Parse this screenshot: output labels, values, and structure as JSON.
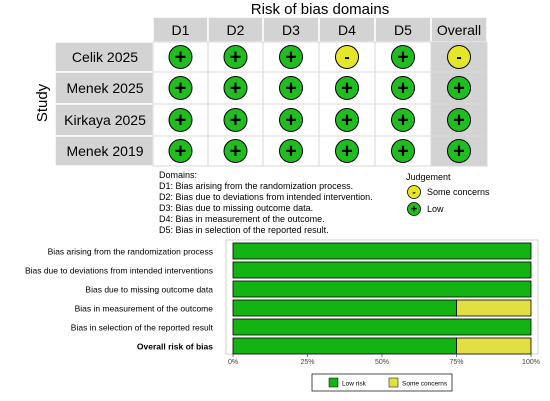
{
  "traffic_light": {
    "title": "Risk of bias domains",
    "study_axis_label": "Study",
    "domain_headers": [
      "D1",
      "D2",
      "D3",
      "D4",
      "D5",
      "Overall"
    ],
    "studies": [
      {
        "name": "Celik 2025",
        "judgements": [
          "low",
          "low",
          "low",
          "some",
          "low",
          "some"
        ]
      },
      {
        "name": "Menek 2025",
        "judgements": [
          "low",
          "low",
          "low",
          "low",
          "low",
          "low"
        ]
      },
      {
        "name": "Kirkaya 2025",
        "judgements": [
          "low",
          "low",
          "low",
          "low",
          "low",
          "low"
        ]
      },
      {
        "name": "Menek 2019",
        "judgements": [
          "low",
          "low",
          "low",
          "low",
          "low",
          "low"
        ]
      }
    ],
    "domains_title": "Domains:",
    "domain_descriptions": [
      "D1: Bias arising from the randomization process.",
      "D2: Bias due to deviations from intended intervention.",
      "D3: Bias due to missing outcome data.",
      "D4: Bias in measurement of the outcome.",
      "D5: Bias in selection of the reported result."
    ],
    "judgement_title": "Judgement",
    "judgement_legend": [
      {
        "key": "some",
        "symbol": "-",
        "label": "Some concerns"
      },
      {
        "key": "low",
        "symbol": "+",
        "label": "Low"
      }
    ]
  },
  "chart_data": {
    "type": "bar",
    "orientation": "horizontal",
    "stacked": true,
    "categories": [
      "Bias arising from the randomization process",
      "Bias due to deviations from intended interventions",
      "Bias due to missing outcome data",
      "Bias in measurement of the outcome",
      "Bias in selection of the reported result",
      "Overall risk of bias"
    ],
    "series": [
      {
        "name": "Low risk",
        "values": [
          100,
          100,
          100,
          75,
          100,
          75
        ]
      },
      {
        "name": "Some concerns",
        "values": [
          0,
          0,
          0,
          25,
          0,
          25
        ]
      }
    ],
    "xticks": [
      "0%",
      "25%",
      "50%",
      "75%",
      "100%"
    ],
    "xlim": [
      0,
      100
    ],
    "legend_position": "bottom"
  },
  "colors": {
    "low": "#1fbd1f",
    "some": "#e6e628",
    "bar_low": "#13b313",
    "bar_some": "#e2df45",
    "header_bg": "#d3d3d3",
    "overall_bg": "#d3d3d3"
  }
}
